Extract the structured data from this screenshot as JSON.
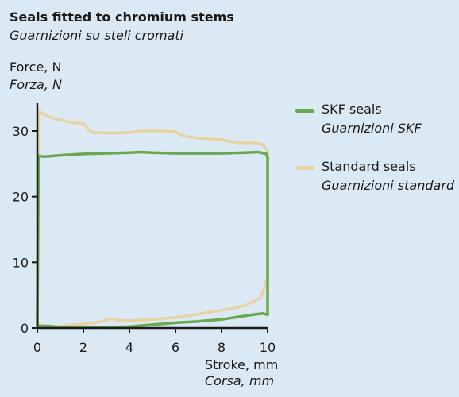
{
  "title": "Seals fitted to chromium stems",
  "subtitle": "Guarnizioni su steli cromati",
  "chart_data": {
    "type": "line",
    "ylabel": "Force, N",
    "ylabel_it": "Forza, N",
    "xlabel": "Stroke, mm",
    "xlabel_it": "Corsa, mm",
    "xlim": [
      0,
      10
    ],
    "ylim": [
      0,
      33
    ],
    "xticks": [
      0,
      2,
      4,
      6,
      8,
      10
    ],
    "yticks": [
      0,
      10,
      20,
      30
    ],
    "grid": false,
    "legend_position": "right",
    "series": [
      {
        "name": "SKF seals",
        "name_it": "Guarnizioni SKF",
        "color": "#6aa84f",
        "points": [
          [
            0.0,
            0.3
          ],
          [
            0.05,
            26.2
          ],
          [
            0.3,
            26.1
          ],
          [
            1,
            26.3
          ],
          [
            2,
            26.5
          ],
          [
            3,
            26.6
          ],
          [
            4,
            26.7
          ],
          [
            4.5,
            26.8
          ],
          [
            5,
            26.7
          ],
          [
            6,
            26.6
          ],
          [
            7,
            26.6
          ],
          [
            8,
            26.6
          ],
          [
            9,
            26.7
          ],
          [
            9.6,
            26.8
          ],
          [
            9.95,
            26.5
          ],
          [
            10,
            26.0
          ],
          [
            10,
            2.0
          ],
          [
            9.8,
            2.2
          ],
          [
            9.3,
            2.0
          ],
          [
            8,
            1.3
          ],
          [
            7,
            1.0
          ],
          [
            6,
            0.8
          ],
          [
            5,
            0.5
          ],
          [
            4,
            0.2
          ],
          [
            3,
            0.1
          ],
          [
            2,
            0.1
          ],
          [
            1,
            0.1
          ],
          [
            0.5,
            0.3
          ],
          [
            0.1,
            0.3
          ],
          [
            0.0,
            0.3
          ]
        ]
      },
      {
        "name": "Standard seals",
        "name_it": "Guarnizioni standard",
        "color": "#e6d3a0",
        "points": [
          [
            0.0,
            1.0
          ],
          [
            0.05,
            20.0
          ],
          [
            0.08,
            33.0
          ],
          [
            0.3,
            32.5
          ],
          [
            0.8,
            31.8
          ],
          [
            1.5,
            31.3
          ],
          [
            2.0,
            31.1
          ],
          [
            2.2,
            30.3
          ],
          [
            2.4,
            29.8
          ],
          [
            3.0,
            29.7
          ],
          [
            3.5,
            29.7
          ],
          [
            4.0,
            29.8
          ],
          [
            4.5,
            30.0
          ],
          [
            5.0,
            30.0
          ],
          [
            5.5,
            30.0
          ],
          [
            6.0,
            29.9
          ],
          [
            6.3,
            29.3
          ],
          [
            7.0,
            28.9
          ],
          [
            7.5,
            28.8
          ],
          [
            8.0,
            28.7
          ],
          [
            8.5,
            28.3
          ],
          [
            9.0,
            28.2
          ],
          [
            9.5,
            28.2
          ],
          [
            9.8,
            27.9
          ],
          [
            10.0,
            27.0
          ],
          [
            10.0,
            7.5
          ],
          [
            9.7,
            4.6
          ],
          [
            9.3,
            3.9
          ],
          [
            9.0,
            3.4
          ],
          [
            8.5,
            3.0
          ],
          [
            8.0,
            2.7
          ],
          [
            7.0,
            2.1
          ],
          [
            6.0,
            1.6
          ],
          [
            5.0,
            1.3
          ],
          [
            4.0,
            1.1
          ],
          [
            3.5,
            1.2
          ],
          [
            3.2,
            1.4
          ],
          [
            3.0,
            1.2
          ],
          [
            2.5,
            0.8
          ],
          [
            2.0,
            0.6
          ],
          [
            1.0,
            0.3
          ],
          [
            0.5,
            0.2
          ],
          [
            0.2,
            0.2
          ],
          [
            0.0,
            1.0
          ]
        ]
      }
    ]
  }
}
